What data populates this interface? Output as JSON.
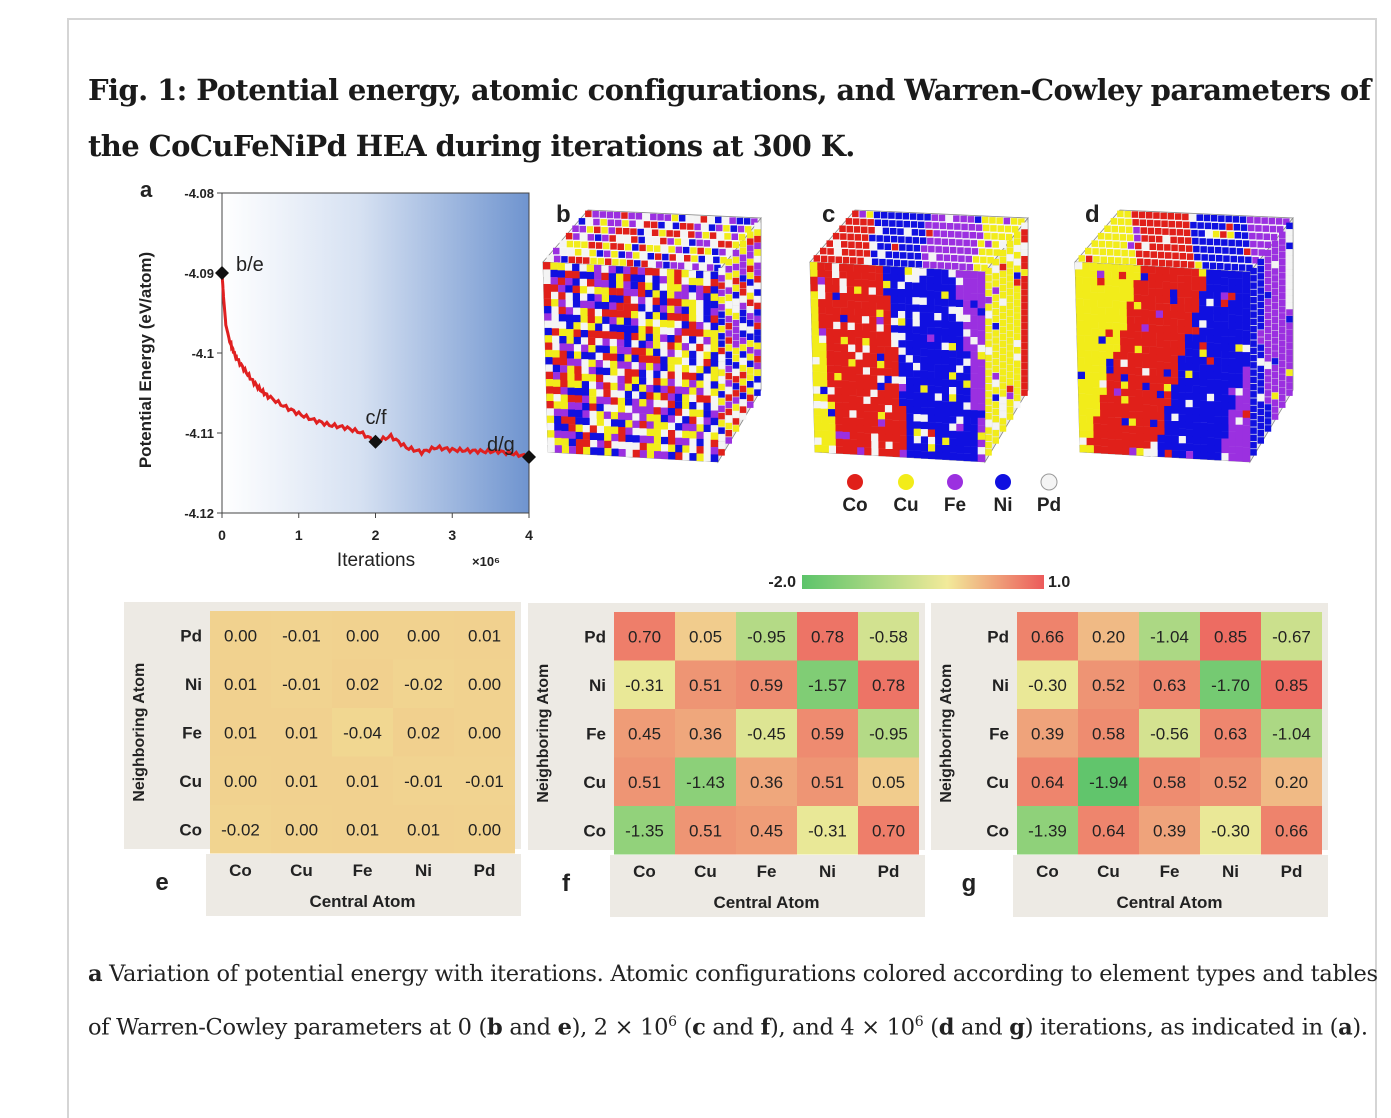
{
  "figure": {
    "title": "Fig. 1: Potential energy, atomic configurations, and Warren-Cowley parameters of the CoCuFeNiPd HEA during iterations at 300  K.",
    "caption": {
      "p1_a": "a",
      "p1_text": " Variation of potential energy with iterations. Atomic configurations colored according to element types and tables of Warren-Cowley parameters at 0 (",
      "b": "b",
      "and1": " and ",
      "e": "e",
      "p2": "), 2 × 10",
      "exp1": "6",
      "p3": " (",
      "c": "c",
      "and2": " and ",
      "f": "f",
      "p4": "), and 4 × 10",
      "exp2": "6",
      "p5": " (",
      "d": "d",
      "and3": " and ",
      "g": "g",
      "p6": ") iterations, as indicated in (",
      "a2": "a",
      "p7": ")."
    }
  },
  "panel_labels": {
    "a": "a",
    "b": "b",
    "c": "c",
    "d": "d",
    "e": "e",
    "f": "f",
    "g": "g"
  },
  "chart_data": {
    "type": "line",
    "xlabel": "Iterations",
    "x_multiplier": "×10⁶",
    "ylabel": "Potential Energy (eV/atom)",
    "xlim": [
      0,
      4
    ],
    "ylim": [
      -4.12,
      -4.08
    ],
    "x_ticks": [
      "0",
      "1",
      "2",
      "3",
      "4"
    ],
    "y_ticks": [
      "-4.08",
      "-4.09",
      "-4.1",
      "-4.11",
      "-4.12"
    ],
    "series": [
      {
        "color": "#e02020",
        "x": [
          0,
          0.02,
          0.05,
          0.1,
          0.15,
          0.2,
          0.3,
          0.4,
          0.5,
          0.6,
          0.8,
          1.0,
          1.2,
          1.4,
          1.6,
          1.8,
          2.0,
          2.2,
          2.4,
          2.6,
          2.8,
          3.0,
          3.2,
          3.4,
          3.6,
          3.8,
          4.0
        ],
        "y": [
          -4.09,
          -4.093,
          -4.0965,
          -4.0985,
          -4.0998,
          -4.1008,
          -4.1022,
          -4.1035,
          -4.1046,
          -4.1054,
          -4.1066,
          -4.1076,
          -4.1084,
          -4.109,
          -4.1093,
          -4.1099,
          -4.1111,
          -4.1104,
          -4.1118,
          -4.1124,
          -4.1118,
          -4.1121,
          -4.1122,
          -4.1123,
          -4.1123,
          -4.1126,
          -4.113
        ]
      }
    ],
    "markers": [
      {
        "label": "b/e",
        "x": 0,
        "y": -4.09
      },
      {
        "label": "c/f",
        "x": 2,
        "y": -4.1111
      },
      {
        "label": "d/g",
        "x": 4,
        "y": -4.113
      }
    ]
  },
  "legend": {
    "elements": [
      {
        "name": "Co",
        "color": "#e0201a"
      },
      {
        "name": "Cu",
        "color": "#f2ec1a"
      },
      {
        "name": "Fe",
        "color": "#9b30e0"
      },
      {
        "name": "Ni",
        "color": "#1010e0"
      },
      {
        "name": "Pd",
        "color": "#f4f4f4"
      }
    ]
  },
  "colorbar": {
    "min": "-2.0",
    "max": "1.0",
    "colors": [
      "#5cc46a",
      "#f2ea9a",
      "#ec5a5a"
    ]
  },
  "tables": {
    "row_axis_label": "Neighboring Atom",
    "col_axis_label": "Central Atom",
    "rows": [
      "Pd",
      "Ni",
      "Fe",
      "Cu",
      "Co"
    ],
    "cols": [
      "Co",
      "Cu",
      "Fe",
      "Ni",
      "Pd"
    ],
    "e": [
      [
        "0.00",
        "-0.01",
        "0.00",
        "0.00",
        "0.01"
      ],
      [
        "0.01",
        "-0.01",
        "0.02",
        "-0.02",
        "0.00"
      ],
      [
        "0.01",
        "0.01",
        "-0.04",
        "0.02",
        "0.00"
      ],
      [
        "0.00",
        "0.01",
        "0.01",
        "-0.01",
        "-0.01"
      ],
      [
        "-0.02",
        "0.00",
        "0.01",
        "0.01",
        "0.00"
      ]
    ],
    "f": [
      [
        "0.70",
        "0.05",
        "-0.95",
        "0.78",
        "-0.58"
      ],
      [
        "-0.31",
        "0.51",
        "0.59",
        "-1.57",
        "0.78"
      ],
      [
        "0.45",
        "0.36",
        "-0.45",
        "0.59",
        "-0.95"
      ],
      [
        "0.51",
        "-1.43",
        "0.36",
        "0.51",
        "0.05"
      ],
      [
        "-1.35",
        "0.51",
        "0.45",
        "-0.31",
        "0.70"
      ]
    ],
    "g": [
      [
        "0.66",
        "0.20",
        "-1.04",
        "0.85",
        "-0.67"
      ],
      [
        "-0.30",
        "0.52",
        "0.63",
        "-1.70",
        "0.85"
      ],
      [
        "0.39",
        "0.58",
        "-0.56",
        "0.63",
        "-1.04"
      ],
      [
        "0.64",
        "-1.94",
        "0.58",
        "0.52",
        "0.20"
      ],
      [
        "-1.39",
        "0.64",
        "0.39",
        "-0.30",
        "0.66"
      ]
    ]
  }
}
